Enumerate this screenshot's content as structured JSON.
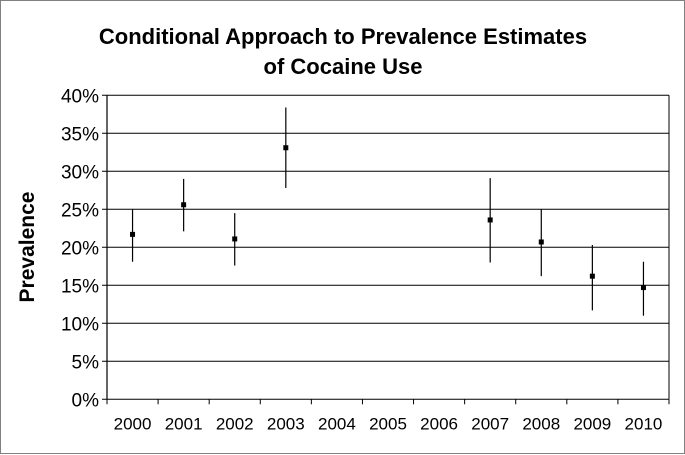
{
  "chart_data": {
    "type": "scatter",
    "title_lines": [
      "Conditional Approach to Prevalence Estimates",
      "of Cocaine Use"
    ],
    "xlabel": "",
    "ylabel": "Prevalence",
    "categories": [
      "2000",
      "2001",
      "2002",
      "2003",
      "2004",
      "2005",
      "2006",
      "2007",
      "2008",
      "2009",
      "2010"
    ],
    "ylim": [
      0,
      40
    ],
    "yticks": [
      "0%",
      "5%",
      "10%",
      "15%",
      "20%",
      "25%",
      "30%",
      "35%",
      "40%"
    ],
    "ytick_values": [
      0,
      5,
      10,
      15,
      20,
      25,
      30,
      35,
      40
    ],
    "grid": true,
    "legend": "none",
    "points": [
      {
        "x": "2000",
        "y": 21.7,
        "low": 18.1,
        "high": 25.0
      },
      {
        "x": "2001",
        "y": 25.6,
        "low": 22.1,
        "high": 29.0
      },
      {
        "x": "2002",
        "y": 21.1,
        "low": 17.6,
        "high": 24.5
      },
      {
        "x": "2003",
        "y": 33.1,
        "low": 27.8,
        "high": 38.4
      },
      {
        "x": "2007",
        "y": 23.6,
        "low": 18.0,
        "high": 29.1
      },
      {
        "x": "2008",
        "y": 20.7,
        "low": 16.2,
        "high": 25.0
      },
      {
        "x": "2009",
        "y": 16.2,
        "low": 11.7,
        "high": 20.3
      },
      {
        "x": "2010",
        "y": 14.7,
        "low": 11.0,
        "high": 18.1
      }
    ],
    "colors": {
      "marker": "#000000",
      "grid": "#000000"
    }
  }
}
